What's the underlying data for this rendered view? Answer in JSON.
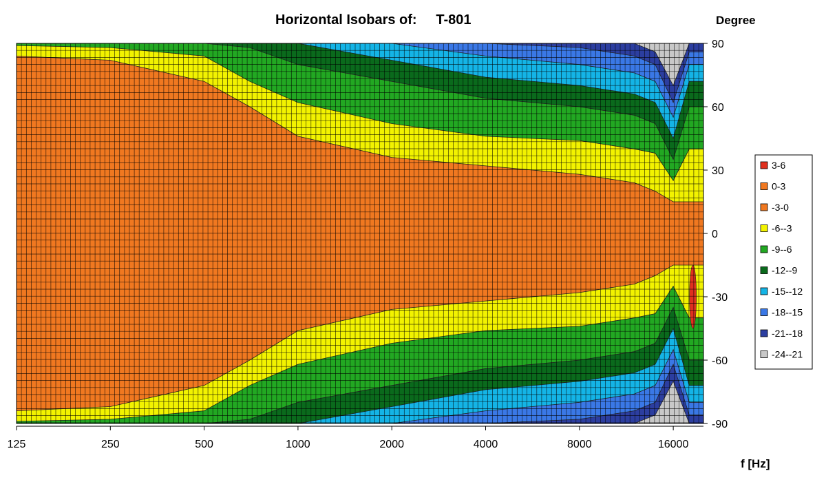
{
  "chart_data": {
    "type": "heatmap",
    "title": "Horizontal Isobars of:     T-801",
    "xlabel": "f [Hz]",
    "ylabel": "Degree",
    "x_scale": "log2",
    "xlim": [
      125,
      20000
    ],
    "ylim": [
      -90,
      90
    ],
    "x_ticks": [
      125,
      250,
      500,
      1000,
      2000,
      4000,
      8000,
      16000
    ],
    "y_ticks": [
      90,
      60,
      30,
      0,
      -30,
      -60,
      -90
    ],
    "legend": {
      "placement": "right",
      "entries": [
        {
          "label": "3-6",
          "color": "#e0301e"
        },
        {
          "label": "0-3",
          "color": "#f07820"
        },
        {
          "label": "-3-0",
          "color": "#f07820"
        },
        {
          "label": "-6--3",
          "color": "#f2f200"
        },
        {
          "label": "-9--6",
          "color": "#22a822"
        },
        {
          "label": "-12--9",
          "color": "#0a6a1c"
        },
        {
          "label": "-15--12",
          "color": "#14b4e6"
        },
        {
          "label": "-18--15",
          "color": "#3a78e6"
        },
        {
          "label": "-21--18",
          "color": "#2c3ea0"
        },
        {
          "label": "-24--21",
          "color": "#c8c8c8"
        }
      ]
    },
    "contour_boundaries_deg": {
      "frequencies_hz": [
        125,
        250,
        500,
        700,
        1000,
        2000,
        4000,
        8000,
        12000,
        14000,
        16000,
        18000
      ],
      "-3": [
        84,
        82,
        72,
        60,
        46,
        36,
        32,
        28,
        24,
        20,
        15,
        15
      ],
      "-6": [
        89,
        88,
        84,
        72,
        62,
        52,
        46,
        44,
        40,
        38,
        25,
        40
      ],
      "-9": [
        90,
        90,
        90,
        88,
        80,
        72,
        64,
        60,
        56,
        52,
        35,
        60
      ],
      "-12": [
        90,
        90,
        90,
        90,
        90,
        82,
        74,
        70,
        66,
        62,
        45,
        72
      ],
      "-15": [
        90,
        90,
        90,
        90,
        90,
        90,
        84,
        80,
        76,
        72,
        55,
        80
      ],
      "-18": [
        90,
        90,
        90,
        90,
        90,
        90,
        90,
        88,
        84,
        80,
        62,
        86
      ],
      "-21": [
        90,
        90,
        90,
        90,
        90,
        90,
        90,
        90,
        90,
        86,
        70,
        90
      ]
    },
    "grid": true
  }
}
